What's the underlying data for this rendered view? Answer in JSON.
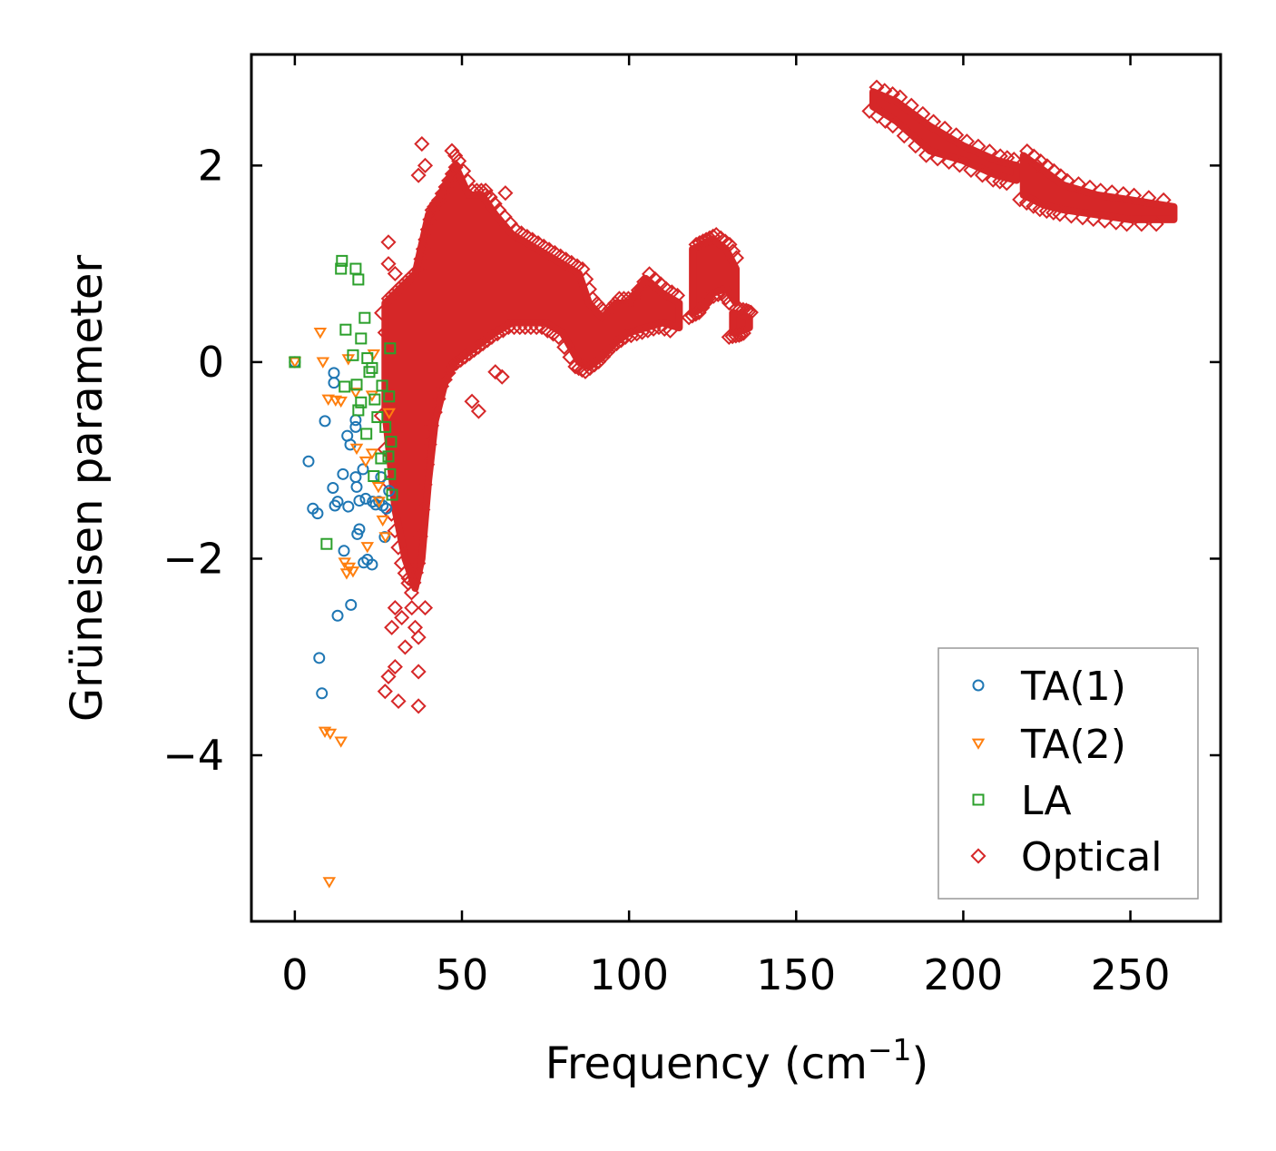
{
  "chart_data": {
    "type": "scatter",
    "title": "",
    "xlabel": "Frequency (cm",
    "xlabel_sup": "−1",
    "xlabel_close": ")",
    "ylabel": "Grüneisen parameter",
    "xlim": [
      -13,
      277
    ],
    "ylim": [
      -5.69,
      3.13
    ],
    "xticks": [
      0,
      50,
      100,
      150,
      200,
      250
    ],
    "xtick_labels": [
      "0",
      "50",
      "100",
      "150",
      "200",
      "250"
    ],
    "yticks": [
      2,
      0,
      -2,
      -4
    ],
    "ytick_labels": [
      "2",
      "0",
      "−2",
      "−4"
    ],
    "grid": false,
    "legend_position": "bottom-right",
    "series": [
      {
        "name": "TA(1)",
        "marker": "circle",
        "color": "#1f77b4",
        "points": [
          [
            0,
            0
          ],
          [
            4.1,
            -1.01
          ],
          [
            5.4,
            -1.49
          ],
          [
            6.8,
            -1.54
          ],
          [
            7.3,
            -3.01
          ],
          [
            8.1,
            -3.37
          ],
          [
            9.0,
            -0.6
          ],
          [
            11.7,
            -0.11
          ],
          [
            11.7,
            -0.21
          ],
          [
            11.4,
            -1.28
          ],
          [
            12,
            -1.46
          ],
          [
            12.8,
            -1.42
          ],
          [
            12.8,
            -2.58
          ],
          [
            14.4,
            -1.14
          ],
          [
            14.7,
            -1.92
          ],
          [
            15.7,
            -0.75
          ],
          [
            16,
            -1.47
          ],
          [
            16.6,
            -0.84
          ],
          [
            16.8,
            -2.47
          ],
          [
            18.2,
            -0.59
          ],
          [
            18.2,
            -0.66
          ],
          [
            18.2,
            -1.17
          ],
          [
            18.5,
            -1.27
          ],
          [
            18.7,
            -1.75
          ],
          [
            19.3,
            -1.7
          ],
          [
            19.3,
            -1.41
          ],
          [
            20.4,
            -1.09
          ],
          [
            20.6,
            -2.04
          ],
          [
            21.2,
            -1.39
          ],
          [
            21.7,
            -2.01
          ],
          [
            23.1,
            -2.06
          ],
          [
            23.3,
            -1.42
          ],
          [
            24.2,
            -1.45
          ],
          [
            25.2,
            -1.42
          ],
          [
            25.8,
            -1.17
          ],
          [
            26.3,
            -1.46
          ],
          [
            26.9,
            -1.78
          ],
          [
            27.4,
            -1.49
          ],
          [
            28.2,
            -1.31
          ]
        ]
      },
      {
        "name": "TA(2)",
        "marker": "triangle-down",
        "color": "#ff7f0e",
        "points": [
          [
            0,
            0
          ],
          [
            7.6,
            0.3
          ],
          [
            8.4,
            0
          ],
          [
            9,
            -3.76
          ],
          [
            10.6,
            -3.78
          ],
          [
            10.3,
            -5.29
          ],
          [
            13.8,
            -3.86
          ],
          [
            10,
            -0.38
          ],
          [
            12.2,
            -0.39
          ],
          [
            13.8,
            -0.4
          ],
          [
            16,
            0.03
          ],
          [
            14.9,
            -2.04
          ],
          [
            15.5,
            -2.15
          ],
          [
            16.3,
            -2.09
          ],
          [
            17.4,
            -2.13
          ],
          [
            18.5,
            -0.88
          ],
          [
            21.7,
            -1.88
          ],
          [
            23.1,
            -0.93
          ],
          [
            23.6,
            0.08
          ],
          [
            25,
            -1.27
          ],
          [
            26.3,
            -1.61
          ],
          [
            25.2,
            -1.42
          ],
          [
            27.1,
            -1.78
          ],
          [
            23.1,
            -0.34
          ],
          [
            18.2,
            -0.31
          ],
          [
            28.2,
            -0.52
          ],
          [
            21.2,
            -1.01
          ]
        ]
      },
      {
        "name": "LA",
        "marker": "square",
        "color": "#2ca02c",
        "points": [
          [
            0,
            0
          ],
          [
            14.1,
            1.03
          ],
          [
            13.8,
            0.95
          ],
          [
            18.2,
            0.95
          ],
          [
            19,
            0.84
          ],
          [
            15.2,
            0.33
          ],
          [
            20.9,
            0.45
          ],
          [
            19.8,
            0.24
          ],
          [
            17.4,
            0.07
          ],
          [
            28.5,
            0.14
          ],
          [
            14.9,
            -0.25
          ],
          [
            18.5,
            -0.23
          ],
          [
            19,
            -0.49
          ],
          [
            9.5,
            -1.85
          ],
          [
            21.7,
            0.04
          ],
          [
            22.3,
            -0.1
          ],
          [
            23.1,
            -0.06
          ],
          [
            23.9,
            -0.38
          ],
          [
            24.7,
            -0.56
          ],
          [
            26.1,
            -0.24
          ],
          [
            27.1,
            -0.66
          ],
          [
            28.2,
            -0.35
          ],
          [
            25.8,
            -0.98
          ],
          [
            28,
            -0.96
          ],
          [
            28.8,
            -0.81
          ],
          [
            28.5,
            -1.14
          ],
          [
            29.1,
            -1.35
          ],
          [
            19.8,
            -0.41
          ],
          [
            21.4,
            -0.73
          ],
          [
            23.6,
            -1.16
          ]
        ]
      },
      {
        "name": "Optical",
        "marker": "diamond",
        "color": "#d62728",
        "dense_bands": [
          [
            [
              27,
              -0.5,
              0.6
            ],
            [
              30,
              -1.5,
              0.7
            ],
            [
              33,
              -2.0,
              0.8
            ],
            [
              36,
              -2.3,
              0.9
            ],
            [
              38,
              -2.0,
              1.2
            ],
            [
              40,
              -1.2,
              1.5
            ],
            [
              42,
              -0.6,
              1.6
            ],
            [
              45,
              -0.2,
              1.8
            ],
            [
              48,
              0.0,
              2.0
            ],
            [
              52,
              0.1,
              1.7
            ],
            [
              56,
              0.2,
              1.7
            ],
            [
              60,
              0.3,
              1.5
            ],
            [
              65,
              0.4,
              1.3
            ],
            [
              70,
              0.4,
              1.2
            ],
            [
              75,
              0.4,
              1.1
            ],
            [
              80,
              0.3,
              1.0
            ],
            [
              85,
              0.0,
              0.9
            ],
            [
              88,
              -0.05,
              0.6
            ],
            [
              92,
              0.05,
              0.45
            ],
            [
              96,
              0.2,
              0.6
            ],
            [
              100,
              0.3,
              0.6
            ],
            [
              105,
              0.35,
              0.85
            ],
            [
              110,
              0.4,
              0.7
            ],
            [
              115,
              0.35,
              0.6
            ]
          ],
          [
            [
              119,
              0.5,
              1.15
            ],
            [
              122,
              0.55,
              1.2
            ],
            [
              125,
              0.7,
              1.25
            ],
            [
              129,
              0.75,
              1.15
            ],
            [
              132,
              0.6,
              0.95
            ]
          ],
          [
            [
              131,
              0.3,
              0.5
            ],
            [
              134,
              0.32,
              0.48
            ],
            [
              136,
              0.35,
              0.45
            ]
          ],
          [
            [
              173,
              2.6,
              2.75
            ],
            [
              180,
              2.45,
              2.65
            ],
            [
              190,
              2.15,
              2.4
            ],
            [
              200,
              2.05,
              2.2
            ],
            [
              210,
              1.9,
              2.05
            ],
            [
              216,
              1.85,
              2.0
            ]
          ],
          [
            [
              218,
              1.7,
              2.1
            ],
            [
              224,
              1.6,
              1.95
            ],
            [
              230,
              1.55,
              1.8
            ],
            [
              240,
              1.5,
              1.7
            ],
            [
              250,
              1.45,
              1.65
            ],
            [
              263,
              1.45,
              1.58
            ]
          ]
        ],
        "points": [
          [
            38,
            2.22
          ],
          [
            39,
            2.0
          ],
          [
            37,
            1.9
          ],
          [
            47,
            2.15
          ],
          [
            48,
            2.1
          ],
          [
            63,
            1.72
          ],
          [
            57,
            1.7
          ],
          [
            28,
            1.22
          ],
          [
            36,
            -2.7
          ],
          [
            37,
            -2.8
          ],
          [
            30,
            -2.5
          ],
          [
            28,
            -3.2
          ],
          [
            30,
            -3.1
          ],
          [
            37,
            -3.15
          ],
          [
            37,
            -3.5
          ],
          [
            31,
            -3.45
          ],
          [
            27,
            -3.35
          ],
          [
            33,
            -2.9
          ],
          [
            28,
            1.0
          ],
          [
            30,
            0.9
          ],
          [
            60,
            -0.1
          ],
          [
            55,
            -0.5
          ],
          [
            53,
            -0.4
          ],
          [
            62,
            -0.15
          ],
          [
            222,
            2.0
          ],
          [
            35,
            -2.5
          ],
          [
            39,
            -2.5
          ],
          [
            29,
            -2.7
          ],
          [
            32,
            -2.6
          ],
          [
            34,
            -2.2
          ],
          [
            26,
            0.5
          ],
          [
            27,
            0.3
          ]
        ]
      }
    ]
  }
}
